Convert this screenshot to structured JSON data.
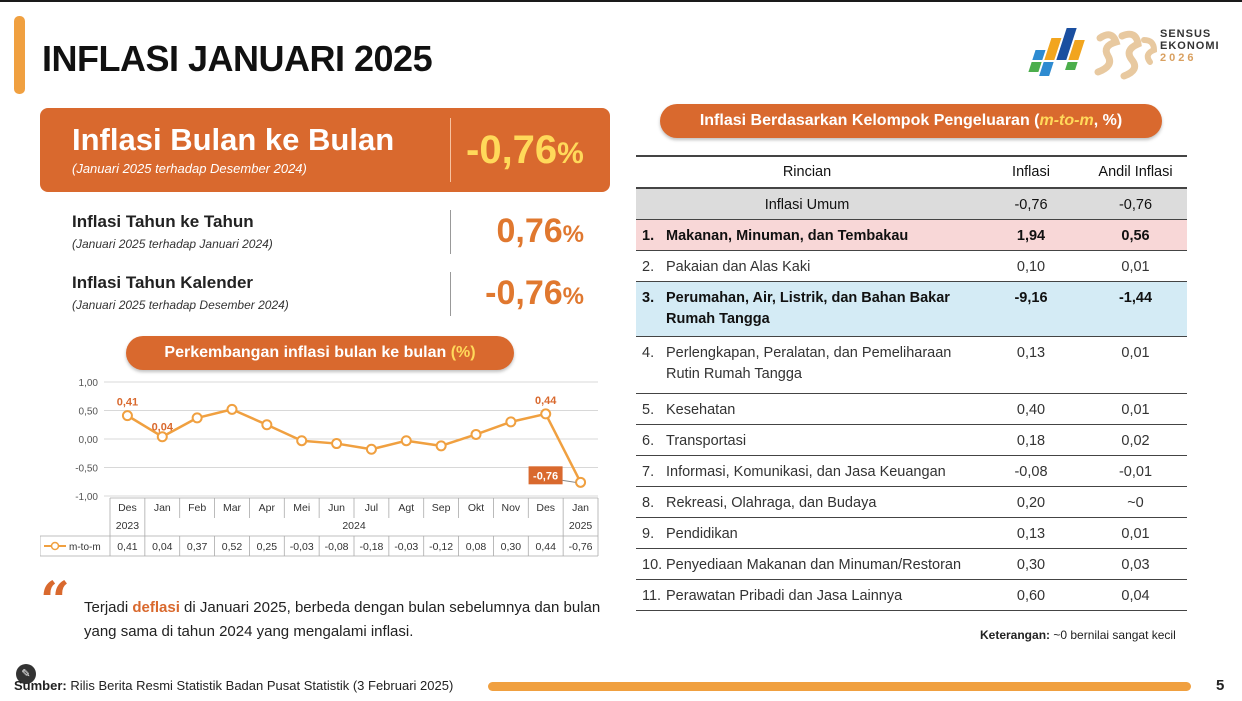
{
  "page": {
    "title": "INFLASI JANUARI 2025",
    "page_number": "5"
  },
  "logo": {
    "line1": "SENSUS",
    "line2": "EKONOMI",
    "line3": "2026"
  },
  "mtm": {
    "title": "Inflasi Bulan ke Bulan",
    "subtitle": "(Januari 2025 terhadap Desember 2024)",
    "value": "-0,76",
    "unit": "%"
  },
  "yoy": {
    "title": "Inflasi Tahun ke Tahun",
    "subtitle": "(Januari 2025 terhadap Januari 2024)",
    "value": "0,76",
    "unit": "%"
  },
  "ytd": {
    "title": "Inflasi Tahun Kalender",
    "subtitle": "(Januari 2025 terhadap Desember 2024)",
    "value": "-0,76",
    "unit": "%"
  },
  "chart_pill": {
    "text": "Perkembangan inflasi bulan ke bulan ",
    "unit": "(%)"
  },
  "chart_data": {
    "type": "line",
    "title": "Perkembangan inflasi bulan ke bulan (%)",
    "categories": [
      "Des",
      "Jan",
      "Feb",
      "Mar",
      "Apr",
      "Mei",
      "Jun",
      "Jul",
      "Agt",
      "Sep",
      "Okt",
      "Nov",
      "Des",
      "Jan"
    ],
    "year_labels": [
      "2023",
      "2024",
      "2025"
    ],
    "series": [
      {
        "name": "m-to-m",
        "values": [
          0.41,
          0.04,
          0.37,
          0.52,
          0.25,
          -0.03,
          -0.08,
          -0.18,
          -0.03,
          -0.12,
          0.08,
          0.3,
          0.44,
          -0.76
        ],
        "color": "#f0a040"
      }
    ],
    "table_values": [
      "0,41",
      "0,04",
      "0,37",
      "0,52",
      "0,25",
      "-0,03",
      "-0,08",
      "-0,18",
      "-0,03",
      "-0,12",
      "0,08",
      "0,30",
      "0,44",
      "-0,76"
    ],
    "point_labels": [
      {
        "index": 0,
        "text": "0,41"
      },
      {
        "index": 1,
        "text": "0,04"
      },
      {
        "index": 12,
        "text": "0,44"
      },
      {
        "index": 13,
        "text": "-0,76",
        "boxed": true
      }
    ],
    "yticks": [
      1.0,
      0.5,
      0.0,
      -0.5,
      -1.0
    ],
    "ytick_labels": [
      "1,00",
      "0,50",
      "0,00",
      "-0,50",
      "-1,00"
    ],
    "ylim": [
      -1.0,
      1.0
    ],
    "grid": true,
    "legend_label": "m-to-m"
  },
  "quote": {
    "before": "Terjadi ",
    "keyword": "deflasi",
    "after": " di Januari 2025, berbeda dengan bulan sebelumnya dan bulan yang sama di tahun 2024 yang mengalami inflasi."
  },
  "footer": {
    "source_label": "Sumber:",
    "source_text": " Rilis Berita Resmi Statistik Badan Pusat Statistik (3 Februari 2025)"
  },
  "table_pill": {
    "text": "Inflasi Berdasarkan Kelompok Pengeluaran (",
    "italic": "m-to-m",
    "tail": ", %)"
  },
  "table": {
    "headers": [
      "Rincian",
      "Inflasi",
      "Andil Inflasi"
    ],
    "umum": {
      "name": "Inflasi Umum",
      "inflasi": "-0,76",
      "andil": "-0,76"
    },
    "rows": [
      {
        "num": "1.",
        "name": "Makanan, Minuman, dan Tembakau",
        "inflasi": "1,94",
        "andil": "0,56",
        "style": "pink"
      },
      {
        "num": "2.",
        "name": "Pakaian dan Alas Kaki",
        "inflasi": "0,10",
        "andil": "0,01",
        "style": ""
      },
      {
        "num": "3.",
        "name": "Perumahan, Air, Listrik, dan Bahan Bakar Rumah Tangga",
        "inflasi": "-9,16",
        "andil": "-1,44",
        "style": "blue"
      },
      {
        "num": "4.",
        "name": "Perlengkapan, Peralatan, dan Pemeliharaan Rutin Rumah Tangga",
        "inflasi": "0,13",
        "andil": "0,01",
        "style": ""
      },
      {
        "num": "5.",
        "name": "Kesehatan",
        "inflasi": "0,40",
        "andil": "0,01",
        "style": ""
      },
      {
        "num": "6.",
        "name": "Transportasi",
        "inflasi": "0,18",
        "andil": "0,02",
        "style": ""
      },
      {
        "num": "7.",
        "name": "Informasi, Komunikasi, dan Jasa Keuangan",
        "inflasi": "-0,08",
        "andil": "-0,01",
        "style": ""
      },
      {
        "num": "8.",
        "name": "Rekreasi, Olahraga, dan Budaya",
        "inflasi": "0,20",
        "andil": "~0",
        "style": ""
      },
      {
        "num": "9.",
        "name": "Pendidikan",
        "inflasi": "0,13",
        "andil": "0,01",
        "style": ""
      },
      {
        "num": "10.",
        "name": "Penyediaan Makanan dan Minuman/Restoran",
        "inflasi": "0,30",
        "andil": "0,03",
        "style": ""
      },
      {
        "num": "11.",
        "name": "Perawatan Pribadi dan Jasa Lainnya",
        "inflasi": "0,60",
        "andil": "0,04",
        "style": ""
      }
    ]
  },
  "note": {
    "label": "Keterangan:",
    "text": " ~0 bernilai sangat kecil"
  }
}
